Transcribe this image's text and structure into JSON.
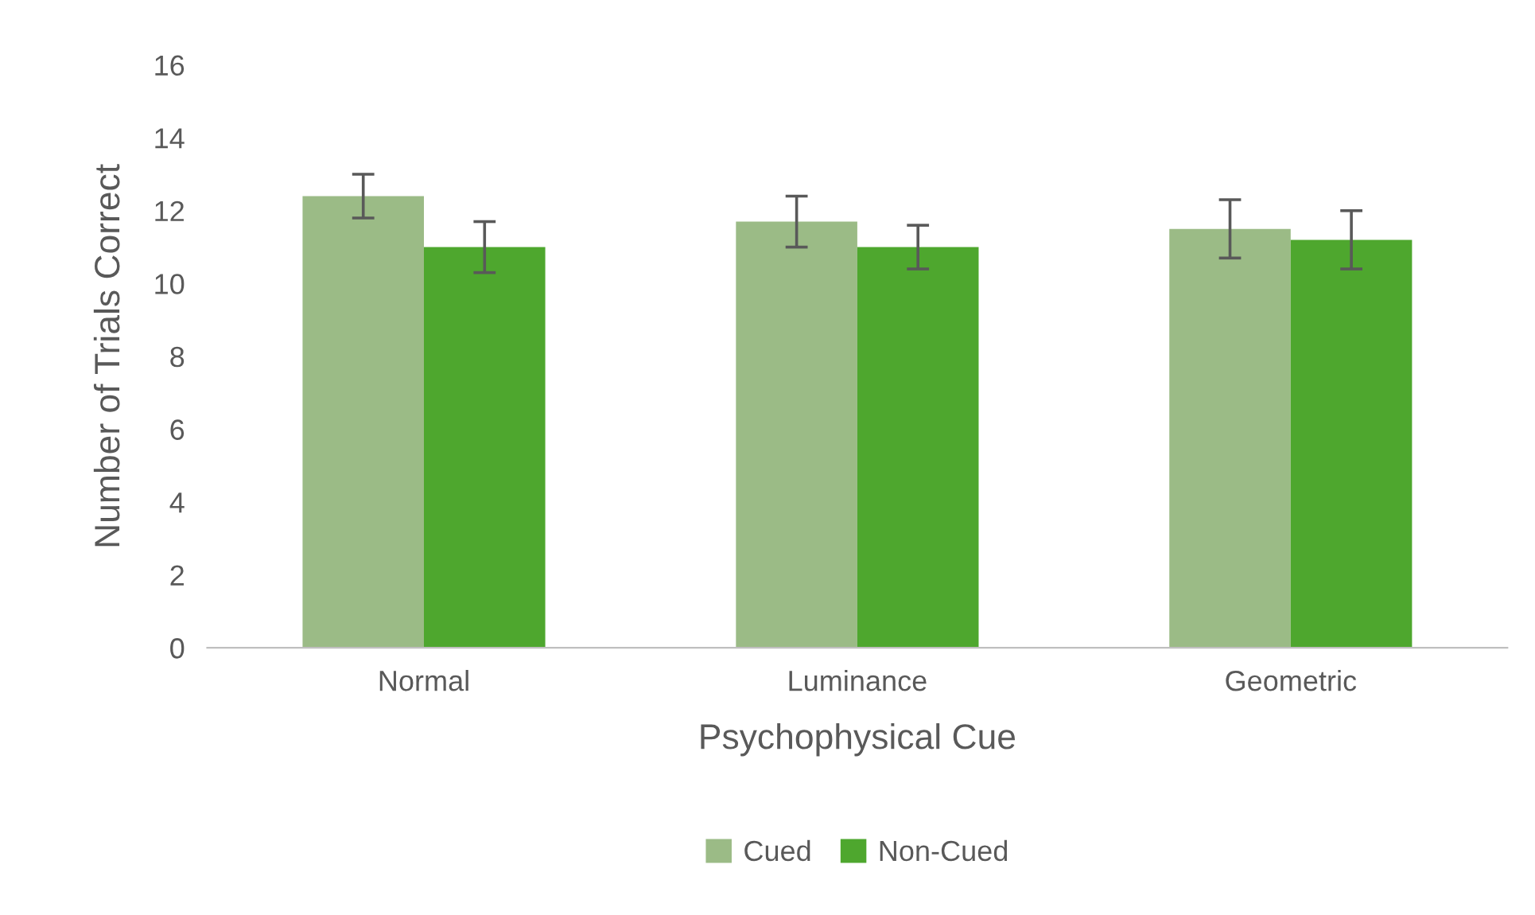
{
  "chart_data": {
    "type": "bar",
    "xlabel": "Psychophysical Cue",
    "ylabel": "Number of Trials Correct",
    "categories": [
      "Normal",
      "Luminance",
      "Geometric"
    ],
    "series": [
      {
        "name": "Cued",
        "color": "#9bbb86",
        "values": [
          12.4,
          11.7,
          11.5
        ],
        "errors": [
          0.6,
          0.7,
          0.8
        ]
      },
      {
        "name": "Non-Cued",
        "color": "#4ea72e",
        "values": [
          11.0,
          11.0,
          11.2
        ],
        "errors": [
          0.7,
          0.6,
          0.8
        ]
      }
    ],
    "ylim": [
      0,
      16
    ],
    "yticks": [
      0,
      2,
      4,
      6,
      8,
      10,
      12,
      14,
      16
    ],
    "grid": false,
    "legend": "bottom"
  }
}
